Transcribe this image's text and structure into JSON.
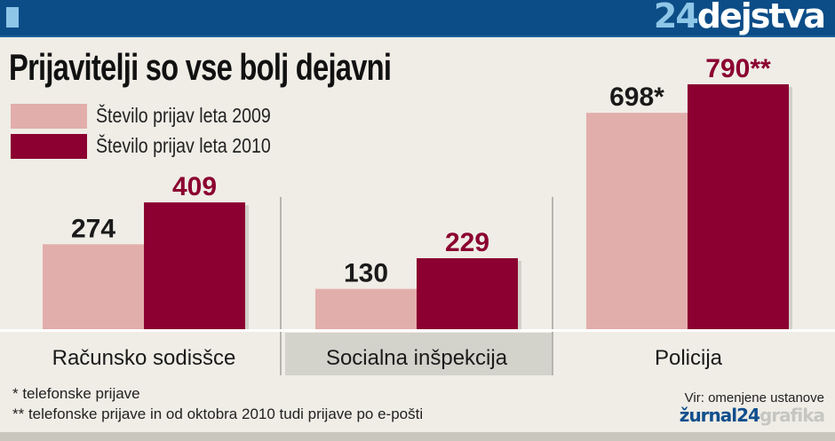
{
  "header": {
    "brand_num": "24",
    "brand_word": "dejstva"
  },
  "title": "Prijavitelji so vse bolj dejavni",
  "colors": {
    "header": "#0c4d87",
    "s2009": "#e2aeab",
    "s2010": "#8b0030"
  },
  "chart_data": {
    "type": "bar",
    "categories": [
      "Računsko sodisšce",
      "Socialna inšpekcija",
      "Policija"
    ],
    "series": [
      {
        "name": "Število prijav leta 2009",
        "values": [
          274,
          130,
          698
        ],
        "labels": [
          "274",
          "130",
          "698*"
        ]
      },
      {
        "name": "Število prijav leta 2010",
        "values": [
          409,
          229,
          790
        ],
        "labels": [
          "409",
          "229",
          "790**"
        ]
      }
    ],
    "ylim": [
      0,
      790
    ],
    "legend": "top-left"
  },
  "footnotes": [
    "* telefonske prijave",
    "** telefonske prijave in od oktobra 2010 tudi prijave po e-pošti"
  ],
  "source": "Vir: omenjene ustanove",
  "credit": {
    "a": "žurnal24",
    "b": "grafika"
  }
}
